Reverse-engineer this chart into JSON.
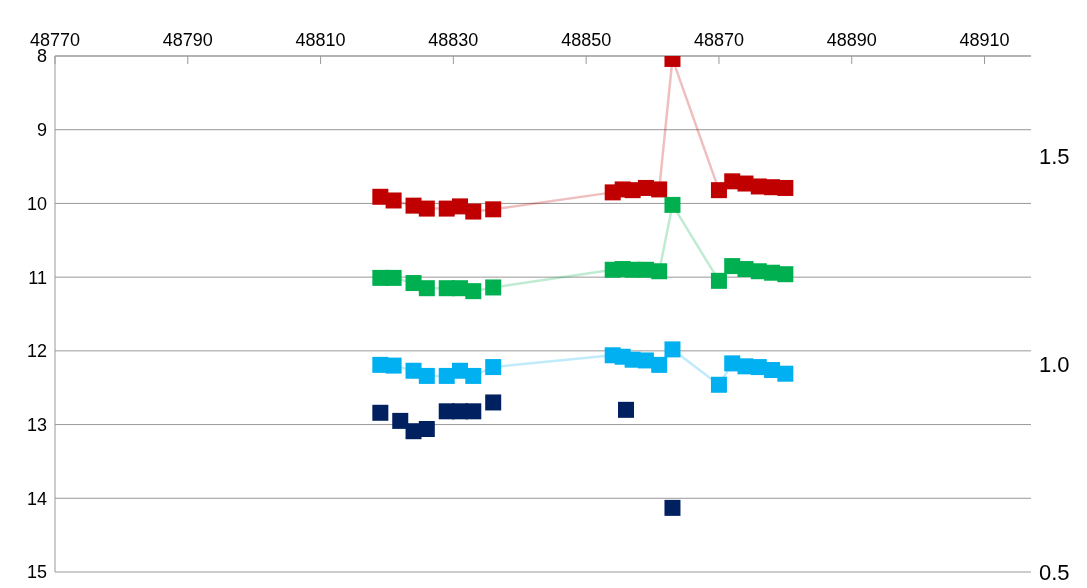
{
  "chart_data": {
    "type": "line",
    "xlim": [
      48770,
      48917
    ],
    "xticks": [
      48770,
      48790,
      48810,
      48830,
      48850,
      48870,
      48890,
      48910
    ],
    "ylim": [
      15,
      8
    ],
    "yticks": [
      8,
      9,
      10,
      11,
      12,
      13,
      14,
      15
    ],
    "y2lim": [
      0.5,
      1.74
    ],
    "y2ticks": [
      {
        "value": 0.5,
        "label": "0.5"
      },
      {
        "value": 1,
        "label": "1.0"
      },
      {
        "value": 1.5,
        "label": "1.5"
      }
    ],
    "grid": "y",
    "marker": "square",
    "legend": false,
    "series": [
      {
        "color": "#c00000",
        "x": [
          48819,
          48821,
          48824,
          48826,
          48829,
          48831,
          48833,
          48836,
          48854,
          48855.5,
          48857,
          48859,
          48861,
          48863,
          48870,
          48872,
          48874,
          48876,
          48878,
          48880
        ],
        "values": [
          9.91,
          9.96,
          10.03,
          10.07,
          10.07,
          10.04,
          10.11,
          10.08,
          9.85,
          9.81,
          9.82,
          9.79,
          9.81,
          8.04,
          9.82,
          9.7,
          9.73,
          9.77,
          9.78,
          9.79
        ]
      },
      {
        "color": "#00b050",
        "x": [
          48819,
          48821,
          48824,
          48826,
          48829,
          48831,
          48833,
          48836,
          48854,
          48855.5,
          48857,
          48859,
          48861,
          48863,
          48870,
          48872,
          48874,
          48876,
          48878,
          48880
        ],
        "values": [
          11.01,
          11.01,
          11.08,
          11.15,
          11.15,
          11.15,
          11.19,
          11.14,
          10.9,
          10.89,
          10.9,
          10.9,
          10.92,
          10.02,
          11.05,
          10.85,
          10.89,
          10.92,
          10.94,
          10.96
        ]
      },
      {
        "color": "#00b0f0",
        "x": [
          48819,
          48821,
          48824,
          48826,
          48829,
          48831,
          48833,
          48836,
          48854,
          48855.5,
          48857,
          48859,
          48861,
          48863,
          48870,
          48872,
          48874,
          48876,
          48878,
          48880
        ],
        "values": [
          12.19,
          12.2,
          12.27,
          12.34,
          12.34,
          12.27,
          12.34,
          12.22,
          12.06,
          12.08,
          12.12,
          12.13,
          12.19,
          11.98,
          12.46,
          12.17,
          12.21,
          12.22,
          12.26,
          12.31
        ]
      },
      {
        "type": "scatter",
        "color": "#002060",
        "x": [
          48819,
          48822,
          48824,
          48826,
          48829,
          48831,
          48833,
          48836,
          48856,
          48863
        ],
        "values": [
          12.84,
          12.95,
          13.09,
          13.06,
          12.82,
          12.82,
          12.82,
          12.7,
          12.8,
          14.13
        ]
      }
    ]
  }
}
